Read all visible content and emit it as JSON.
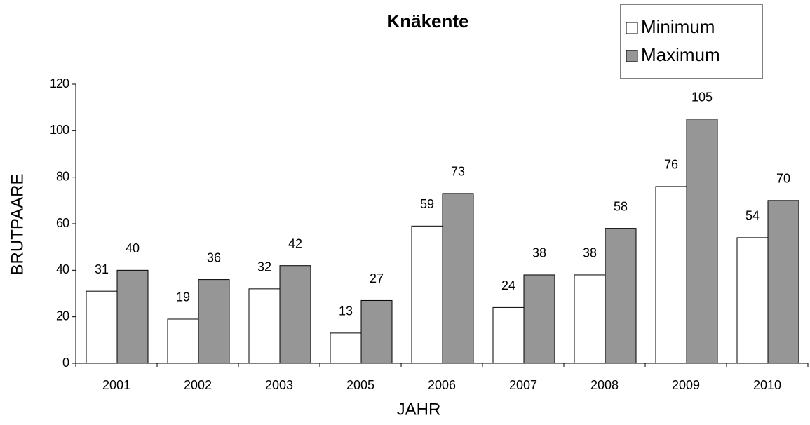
{
  "chart_data": {
    "type": "bar",
    "title": "Knäkente",
    "x_label": "JAHR",
    "y_label": "BRUTPAARE",
    "categories": [
      "2001",
      "2002",
      "2003",
      "2005",
      "2006",
      "2007",
      "2008",
      "2009",
      "2010"
    ],
    "series": [
      {
        "name": "Minimum",
        "color": "#ffffff",
        "values": [
          31,
          19,
          32,
          13,
          59,
          24,
          38,
          76,
          54
        ]
      },
      {
        "name": "Maximum",
        "color": "#969696",
        "values": [
          40,
          36,
          42,
          27,
          73,
          38,
          58,
          105,
          70
        ]
      }
    ],
    "ylim": [
      0,
      120
    ],
    "yticks": [
      0,
      20,
      40,
      60,
      80,
      100,
      120
    ],
    "legend": "top-right"
  }
}
